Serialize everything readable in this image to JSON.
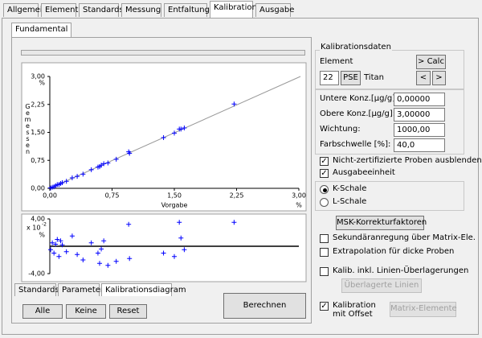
{
  "tabs": [
    "Allgemein",
    "Elemente",
    "Standards",
    "Messung",
    "Entfaltung",
    "Kalibration",
    "Ausgabe"
  ],
  "subtab": "Fundamental",
  "chart": {
    "type": "scatter",
    "y_label": "Gemessen",
    "x_label": "Vorgabe",
    "unit": "%",
    "color": "#0000ff",
    "xlim": [
      0,
      3
    ],
    "ylim": [
      0,
      3
    ],
    "xticks": [
      {
        "value": 0,
        "label": "0,00"
      },
      {
        "value": 0.75,
        "label": "0,75"
      },
      {
        "value": 1.5,
        "label": "1,50"
      },
      {
        "value": 2.25,
        "label": "2,25"
      },
      {
        "value": 3,
        "label": "3,00"
      }
    ],
    "yticks": [
      {
        "value": 0,
        "label": "0,00"
      },
      {
        "value": 0.75,
        "label": "0,75"
      },
      {
        "value": 1.5,
        "label": "1,50"
      },
      {
        "value": 2.25,
        "label": "2,25"
      },
      {
        "value": 3,
        "label": "3,00"
      }
    ],
    "x": [
      0.01,
      0.03,
      0.05,
      0.07,
      0.09,
      0.11,
      0.13,
      0.15,
      0.2,
      0.27,
      0.33,
      0.4,
      0.5,
      0.58,
      0.6,
      0.62,
      0.65,
      0.7,
      0.8,
      0.95,
      0.96,
      1.37,
      1.5,
      1.56,
      1.58,
      1.62,
      2.22
    ],
    "y": [
      0.01,
      0.03,
      0.04,
      0.07,
      0.1,
      0.1,
      0.13,
      0.15,
      0.19,
      0.28,
      0.32,
      0.38,
      0.5,
      0.57,
      0.58,
      0.62,
      0.66,
      0.68,
      0.78,
      0.98,
      0.94,
      1.36,
      1.48,
      1.59,
      1.59,
      1.62,
      2.26
    ]
  },
  "residuals": {
    "scale_label": "x 10",
    "scale_exponent": "-2",
    "unit": "%",
    "ylim": [
      -4,
      4
    ],
    "yticks": [
      {
        "value": 4,
        "label": "4,00"
      },
      {
        "value": -4,
        "label": "-4,00"
      }
    ],
    "x": [
      0.01,
      0.03,
      0.05,
      0.07,
      0.09,
      0.11,
      0.13,
      0.15,
      0.2,
      0.27,
      0.33,
      0.4,
      0.5,
      0.58,
      0.6,
      0.62,
      0.65,
      0.7,
      0.8,
      0.95,
      0.96,
      1.37,
      1.5,
      1.56,
      1.58,
      1.62,
      2.22
    ],
    "values": [
      -0.5,
      0.5,
      -1,
      0.3,
      1,
      -1.5,
      0.8,
      0.2,
      -0.8,
      1.5,
      -1.2,
      -2,
      0.5,
      -1,
      -2.5,
      -0.4,
      0.8,
      -2.8,
      -2.2,
      3.2,
      -1.8,
      -1,
      -1.5,
      3.5,
      1.2,
      -0.5,
      3.5
    ]
  },
  "bottom_tabs": [
    "Standards",
    "Parameter",
    "Kalibrationsdiagram"
  ],
  "buttons": [
    "Alle",
    "Keine",
    "Reset"
  ],
  "calculate": "Berechnen",
  "calibration": {
    "group": "Kalibrationsdaten",
    "element_label": "Element",
    "calc": "> Calc",
    "element_number": "22",
    "pse": "PSE",
    "element_name": "Titan",
    "prev": "<",
    "next": ">",
    "fields": [
      {
        "label": "Untere Konz.[µg/g]:",
        "value": "0,00000"
      },
      {
        "label": "Obere Konz.[µg/g]:",
        "value": "3,00000"
      },
      {
        "label": "Wichtung:",
        "value": "1000,00"
      },
      {
        "label": "Farbschwelle [%]:",
        "value": "40,0"
      }
    ],
    "options": [
      {
        "label": "Nicht-zertifizierte Proben ausblenden",
        "checked": true
      },
      {
        "label": "Ausgabeeinheit",
        "checked": true
      }
    ],
    "radios": [
      {
        "label": "K-Schale",
        "checked": true
      },
      {
        "label": "L-Schale",
        "checked": false
      }
    ],
    "msk": "MSK-Korrekturfaktoren",
    "extra": [
      {
        "label": "Sekundäranregung über Matrix-Ele.",
        "checked": false
      },
      {
        "label": "Extrapolation für dicke Proben",
        "checked": false
      },
      {
        "label": "Kalib. inkl. Linien-Überlagerungen",
        "checked": false
      }
    ],
    "overlay_button": "Überlagerte Linien",
    "offset": {
      "label": "Kalibration mit Offset",
      "checked": true
    },
    "matrix_button": "Matrix-Elemente"
  }
}
